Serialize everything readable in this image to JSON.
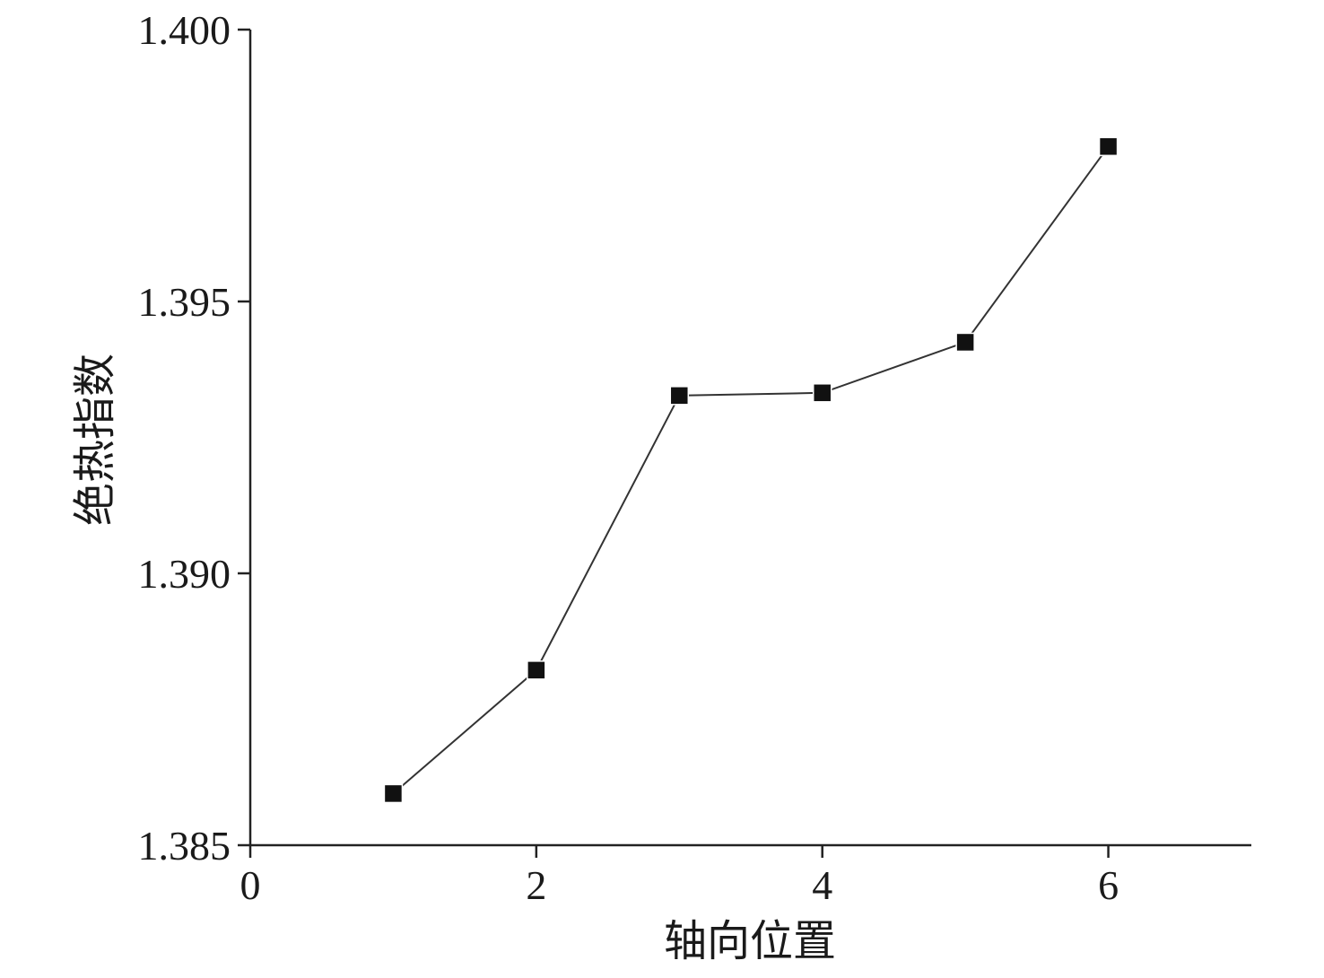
{
  "chart_data": {
    "type": "line",
    "title": "",
    "xlabel": "轴向位置",
    "ylabel": "绝热指数",
    "xlim": [
      0,
      7
    ],
    "ylim": [
      1.385,
      1.4
    ],
    "x_ticks": [
      0,
      2,
      4,
      6
    ],
    "x_tick_labels": [
      "0",
      "2",
      "4",
      "6"
    ],
    "y_ticks": [
      1.385,
      1.39,
      1.395,
      1.4
    ],
    "y_tick_labels": [
      "1.385",
      "1.390",
      "1.395",
      "1.400"
    ],
    "grid": false,
    "marker": "square",
    "series": [
      {
        "x": [
          1,
          2,
          3,
          4,
          5,
          6
        ],
        "y": [
          1.38595,
          1.38822,
          1.39327,
          1.39332,
          1.39425,
          1.39785
        ]
      }
    ],
    "colors": {
      "line": "#333333",
      "marker": "#111111",
      "axis": "#222222"
    }
  }
}
